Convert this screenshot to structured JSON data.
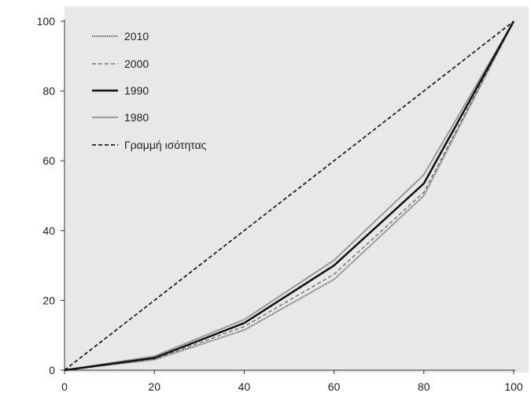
{
  "chart_data": {
    "type": "line",
    "title": "",
    "xlabel": "",
    "ylabel": "",
    "xlim": [
      0,
      100
    ],
    "ylim": [
      0,
      100
    ],
    "x": [
      0,
      20,
      40,
      60,
      80,
      100
    ],
    "x_ticks": [
      "0",
      "20",
      "40",
      "60",
      "80",
      "100"
    ],
    "y_ticks": [
      "0",
      "20",
      "40",
      "60",
      "80",
      "100"
    ],
    "grid": false,
    "legend_position": "top-left",
    "background": "#e8e8e8",
    "series": [
      {
        "name": "2010",
        "values": [
          0,
          3,
          11.5,
          26,
          50,
          100
        ],
        "color": "#555555",
        "style": "dotted"
      },
      {
        "name": "2000",
        "values": [
          0,
          3.2,
          12.5,
          27.5,
          51,
          100
        ],
        "color": "#777777",
        "style": "dashed"
      },
      {
        "name": "1990",
        "values": [
          0,
          3.5,
          13.5,
          30,
          53.5,
          100
        ],
        "color": "#111111",
        "style": "solid-thick"
      },
      {
        "name": "1980",
        "values": [
          0,
          4,
          14.5,
          31.5,
          56,
          100
        ],
        "color": "#9a9a9a",
        "style": "solid"
      },
      {
        "name": "Γραμμή ισότητας",
        "values": [
          0,
          20,
          40,
          60,
          80,
          100
        ],
        "color": "#222222",
        "style": "dashed-dark"
      }
    ]
  }
}
